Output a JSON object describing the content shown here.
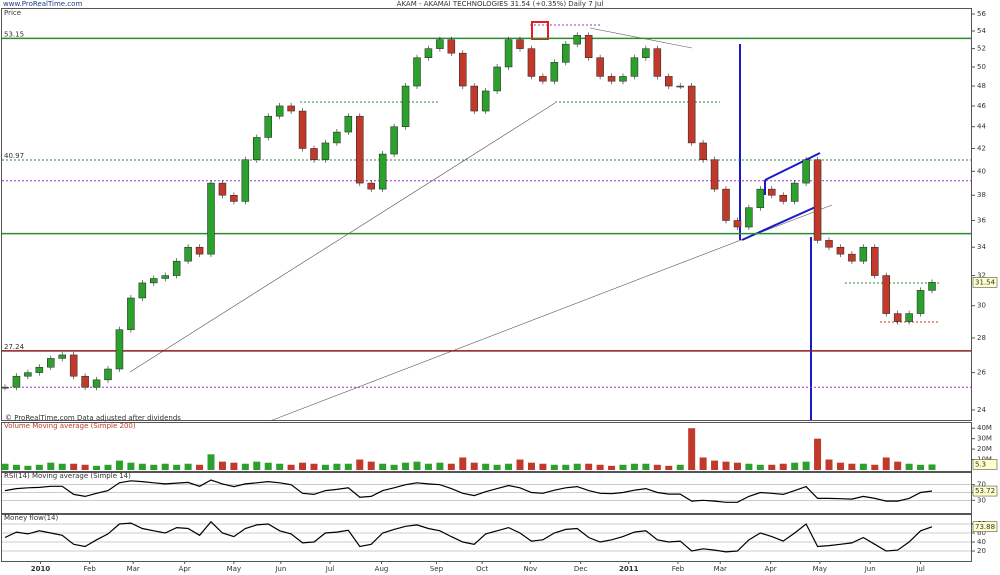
{
  "chart_data": [
    {
      "type": "candlestick",
      "title": "AKAM - AKAMAI TECHNOLOGIES   31.54 (+0.35%)   Daily 7 Jul",
      "site": "www.ProRealTime.com",
      "panel_label": "Price",
      "footnote": "© ProRealTime.com  Data adjusted after dividends",
      "up_color": "#2ca02c",
      "down_color": "#c0392b",
      "log_scale": true,
      "values": [
        25.2,
        25.8,
        26.0,
        26.3,
        26.8,
        27.0,
        25.8,
        25.2,
        25.6,
        26.2,
        28.5,
        30.5,
        31.5,
        31.8,
        32.0,
        33.0,
        34.0,
        33.5,
        39.0,
        38.0,
        37.5,
        41.0,
        43.0,
        45.0,
        46.0,
        45.5,
        42.0,
        41.0,
        42.5,
        43.5,
        45.0,
        39.0,
        38.5,
        41.5,
        44.0,
        48.0,
        51.0,
        52.0,
        53.0,
        51.5,
        48.0,
        45.5,
        47.5,
        50.0,
        53.0,
        52.0,
        49.0,
        48.5,
        50.5,
        52.5,
        53.5,
        51.0,
        49.0,
        48.5,
        49.0,
        51.0,
        52.0,
        49.0,
        48.0,
        48.0,
        42.5,
        41.0,
        38.5,
        36.0,
        35.5,
        37.0,
        38.5,
        38.0,
        37.5,
        39.0,
        41.0,
        34.5,
        34.0,
        33.5,
        33.0,
        34.0,
        32.0,
        29.5,
        29.0,
        29.5,
        31.0,
        31.54
      ],
      "ylim": [
        24,
        56
      ],
      "yticks": [
        24,
        26,
        28,
        30,
        32,
        34,
        36,
        38,
        40,
        42,
        44,
        46,
        48,
        50,
        52,
        54,
        56
      ],
      "levels": [
        {
          "value": 53.15,
          "color": "#2e8b2e",
          "dashed": false,
          "labeled": true
        },
        {
          "value": 40.97,
          "color": "#2e8b2e",
          "dashed": true,
          "labeled": true
        },
        {
          "value": 27.24,
          "color": "#8b1a1a",
          "dashed": false,
          "labeled": true
        },
        {
          "value": 35,
          "color": "#2e8b2e",
          "dashed": false,
          "labeled": false
        },
        {
          "value": 39.2,
          "color": "#9933cc",
          "dashed": true,
          "labeled": false
        },
        {
          "value": 25.2,
          "color": "#9933cc",
          "dashed": true,
          "labeled": false
        }
      ]
    },
    {
      "type": "bar",
      "panel_label": "Volume  Moving average (Simple 200)",
      "up_color": "#2ca02c",
      "down_color": "#c0392b",
      "values": [
        6,
        5,
        4,
        5,
        7,
        6,
        6,
        5,
        4,
        5,
        9,
        7,
        6,
        5,
        6,
        5,
        6,
        5,
        15,
        8,
        7,
        6,
        8,
        7,
        6,
        5,
        7,
        6,
        5,
        6,
        6,
        10,
        8,
        6,
        5,
        7,
        8,
        6,
        7,
        6,
        12,
        7,
        6,
        5,
        6,
        10,
        7,
        6,
        5,
        5,
        6,
        6,
        5,
        4,
        5,
        6,
        6,
        5,
        4,
        5,
        40,
        12,
        9,
        8,
        7,
        6,
        5,
        5,
        6,
        7,
        8,
        30,
        10,
        7,
        6,
        6,
        5,
        12,
        8,
        6,
        5,
        5.3
      ],
      "ylim": [
        0,
        45
      ],
      "yticks": [
        {
          "value": 10,
          "label": "10M"
        },
        {
          "value": 20,
          "label": "20M"
        },
        {
          "value": 30,
          "label": "30M"
        },
        {
          "value": 40,
          "label": "40M"
        }
      ]
    },
    {
      "type": "line",
      "panel_label": "RSI(14)  Moving average (Simple 14)",
      "color": "#000000",
      "values": [
        55,
        60,
        62,
        63,
        66,
        66,
        45,
        40,
        48,
        55,
        75,
        80,
        78,
        75,
        72,
        74,
        76,
        66,
        82,
        72,
        65,
        72,
        75,
        78,
        75,
        70,
        48,
        45,
        55,
        58,
        62,
        38,
        40,
        55,
        62,
        70,
        75,
        72,
        70,
        60,
        48,
        42,
        52,
        60,
        68,
        62,
        50,
        48,
        56,
        62,
        65,
        55,
        48,
        47,
        50,
        56,
        60,
        50,
        46,
        46,
        28,
        30,
        28,
        25,
        25,
        40,
        50,
        48,
        45,
        55,
        65,
        35,
        35,
        34,
        33,
        40,
        35,
        28,
        28,
        35,
        50,
        53.72
      ],
      "ylim": [
        0,
        100
      ],
      "yticks": [
        30,
        50,
        70
      ]
    },
    {
      "type": "line",
      "panel_label": "Money flow(14)",
      "color": "#000000",
      "values": [
        50,
        62,
        58,
        65,
        60,
        55,
        35,
        30,
        45,
        58,
        80,
        82,
        70,
        65,
        60,
        72,
        70,
        55,
        85,
        60,
        52,
        70,
        78,
        80,
        65,
        58,
        38,
        40,
        60,
        62,
        66,
        30,
        35,
        60,
        68,
        75,
        78,
        70,
        65,
        52,
        40,
        35,
        58,
        65,
        72,
        60,
        42,
        45,
        60,
        68,
        70,
        50,
        40,
        45,
        52,
        62,
        65,
        45,
        40,
        42,
        20,
        25,
        22,
        18,
        20,
        45,
        60,
        52,
        42,
        60,
        80,
        30,
        32,
        35,
        38,
        50,
        35,
        20,
        22,
        40,
        65,
        73.88
      ],
      "ylim": [
        0,
        100
      ],
      "yticks": [
        20,
        40,
        60,
        80
      ],
      "xlim": [
        0,
        81
      ],
      "xticks": [
        {
          "value": 3.1,
          "label": "2010"
        },
        {
          "value": 7.4,
          "label": "Feb"
        },
        {
          "value": 11.2,
          "label": "Mar"
        },
        {
          "value": 15.7,
          "label": "Apr"
        },
        {
          "value": 20,
          "label": "May"
        },
        {
          "value": 24.1,
          "label": "Jun"
        },
        {
          "value": 28.4,
          "label": "Jul"
        },
        {
          "value": 32.9,
          "label": "Aug"
        },
        {
          "value": 37.7,
          "label": "Sep"
        },
        {
          "value": 41.7,
          "label": "Oct"
        },
        {
          "value": 45.9,
          "label": "Nov"
        },
        {
          "value": 50.3,
          "label": "Dec"
        },
        {
          "value": 54.5,
          "label": "2011"
        },
        {
          "value": 58.8,
          "label": "Feb"
        },
        {
          "value": 62.5,
          "label": "Mar"
        },
        {
          "value": 66.9,
          "label": "Apr"
        },
        {
          "value": 71.2,
          "label": "May"
        },
        {
          "value": 75.6,
          "label": "Jun"
        },
        {
          "value": 80,
          "label": "Jul"
        }
      ]
    }
  ]
}
